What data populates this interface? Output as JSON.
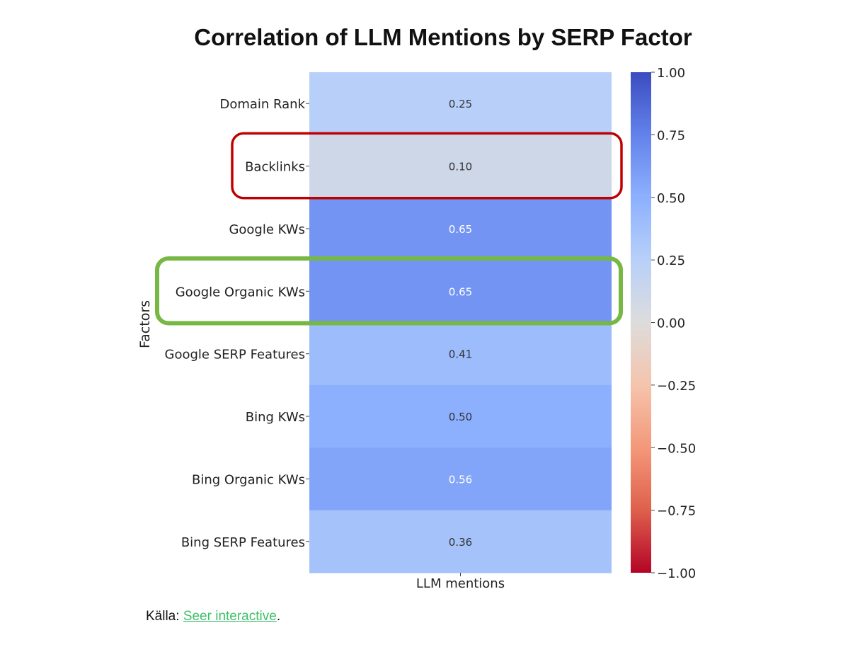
{
  "chart_data": {
    "type": "heatmap",
    "title": "Correlation of LLM Mentions by SERP Factor",
    "xlabel": "",
    "ylabel": "Factors",
    "x_categories": [
      "LLM mentions"
    ],
    "y_categories": [
      "Domain Rank",
      "Backlinks",
      "Google KWs",
      "Google Organic KWs",
      "Google SERP Features",
      "Bing KWs",
      "Bing Organic KWs",
      "Bing SERP Features"
    ],
    "values": [
      0.25,
      0.1,
      0.65,
      0.65,
      0.41,
      0.5,
      0.56,
      0.36
    ],
    "value_labels": [
      "0.25",
      "0.10",
      "0.65",
      "0.65",
      "0.41",
      "0.50",
      "0.56",
      "0.36"
    ],
    "colorbar": {
      "range": [
        -1.0,
        1.0
      ],
      "ticks": [
        1.0,
        0.75,
        0.5,
        0.25,
        0.0,
        -0.25,
        -0.5,
        -0.75,
        -1.0
      ],
      "tick_labels": [
        "1.00",
        "0.75",
        "0.50",
        "0.25",
        "0.00",
        "−0.25",
        "−0.50",
        "−0.75",
        "−1.00"
      ],
      "colormap": "coolwarm"
    },
    "highlights": [
      {
        "row": "Backlinks",
        "color": "#c00000"
      },
      {
        "row": "Google Organic KWs",
        "color": "#76b843"
      }
    ]
  },
  "source": {
    "prefix": "Källa: ",
    "link_text": "Seer interactive",
    "suffix": "."
  }
}
